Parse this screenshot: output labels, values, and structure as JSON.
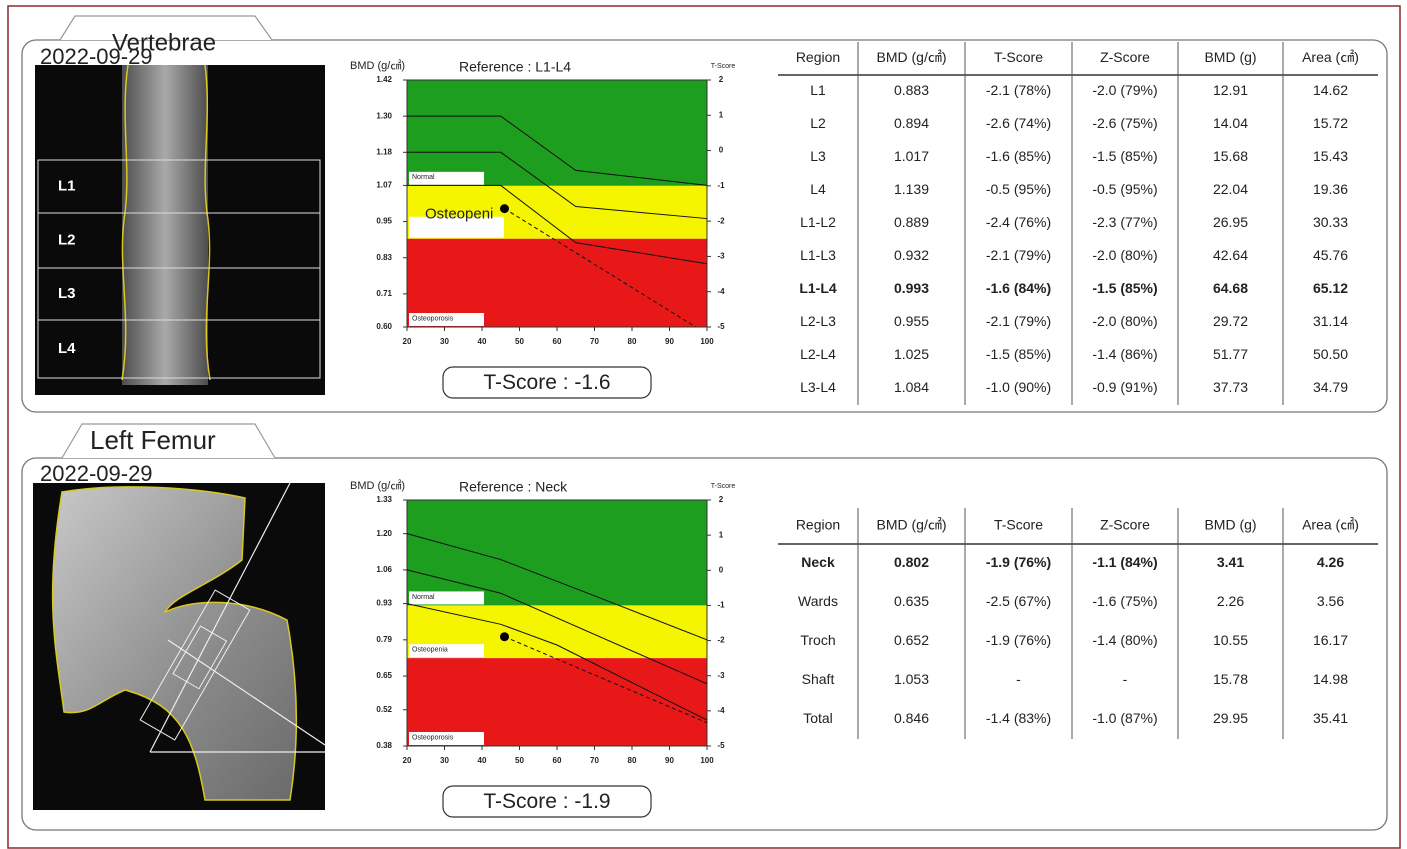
{
  "panels": [
    {
      "title": "Vertebrae",
      "date": "2022-09-29",
      "image_labels": [
        "L1",
        "L2",
        "L3",
        "L4"
      ],
      "chart": {
        "type": "line",
        "y_label": "BMD (g/㎠)",
        "reference": "Reference : L1-L4",
        "y2_label": "T-Score",
        "xlim": [
          20,
          100
        ],
        "xticks": [
          20,
          30,
          40,
          50,
          60,
          70,
          80,
          90,
          100
        ],
        "ylim": [
          0.6,
          1.42
        ],
        "yticks": [
          1.42,
          {
            "value": 1.3,
            "label": "1.30"
          },
          1.18,
          1.07,
          0.95,
          0.83,
          0.71,
          {
            "value": 0.6,
            "label": "0.60"
          }
        ],
        "y2lim": [
          -5,
          2
        ],
        "y2ticks": [
          2,
          1,
          0,
          -1,
          -2,
          -3,
          -4,
          -5
        ],
        "zones": [
          {
            "label": "Normal",
            "from": -1,
            "to": 2,
            "color": "#1e9e1e"
          },
          {
            "label": "Osteopeni",
            "from": -2.5,
            "to": -1,
            "color": "#f5f500"
          },
          {
            "label": "Osteoporosis",
            "from": -5,
            "to": -2.5,
            "color": "#e81818"
          }
        ],
        "series": [
          {
            "style": "solid",
            "x": [
              20,
              45,
              65,
              100
            ],
            "values": [
              1.3,
              1.3,
              1.12,
              1.07
            ]
          },
          {
            "style": "solid",
            "x": [
              20,
              45,
              65,
              100
            ],
            "values": [
              1.18,
              1.18,
              1.0,
              0.96
            ]
          },
          {
            "style": "solid",
            "x": [
              20,
              45,
              65,
              100
            ],
            "values": [
              1.07,
              1.07,
              0.88,
              0.81
            ]
          },
          {
            "style": "dashed",
            "x": [
              46,
              97
            ],
            "values": [
              0.993,
              0.6
            ]
          }
        ],
        "point": {
          "x": 46,
          "value": 0.993
        }
      },
      "tscore": "T-Score : -1.6",
      "table": {
        "header": [
          "Region",
          "BMD (g/㎠)",
          "T-Score",
          "Z-Score",
          "BMD (g)",
          "Area (㎠)"
        ],
        "bold_row": 6,
        "rows": [
          [
            "L1",
            "0.883",
            "-2.1 (78%)",
            "-2.0 (79%)",
            "12.91",
            "14.62"
          ],
          [
            "L2",
            "0.894",
            "-2.6 (74%)",
            "-2.6 (75%)",
            "14.04",
            "15.72"
          ],
          [
            "L3",
            "1.017",
            "-1.6 (85%)",
            "-1.5 (85%)",
            "15.68",
            "15.43"
          ],
          [
            "L4",
            "1.139",
            "-0.5 (95%)",
            "-0.5 (95%)",
            "22.04",
            "19.36"
          ],
          [
            "L1-L2",
            "0.889",
            "-2.4 (76%)",
            "-2.3 (77%)",
            "26.95",
            "30.33"
          ],
          [
            "L1-L3",
            "0.932",
            "-2.1 (79%)",
            "-2.0 (80%)",
            "42.64",
            "45.76"
          ],
          [
            "L1-L4",
            "0.993",
            "-1.6 (84%)",
            "-1.5 (85%)",
            "64.68",
            "65.12"
          ],
          [
            "L2-L3",
            "0.955",
            "-2.1 (79%)",
            "-2.0 (80%)",
            "29.72",
            "31.14"
          ],
          [
            "L2-L4",
            "1.025",
            "-1.5 (85%)",
            "-1.4 (86%)",
            "51.77",
            "50.50"
          ],
          [
            "L3-L4",
            "1.084",
            "-1.0 (90%)",
            "-0.9 (91%)",
            "37.73",
            "34.79"
          ]
        ]
      }
    },
    {
      "title": "Left Femur",
      "date": "2022-09-29",
      "image_labels": [],
      "chart": {
        "type": "line",
        "y_label": "BMD (g/㎠)",
        "reference": "Reference : Neck",
        "y2_label": "T-Score",
        "xlim": [
          20,
          100
        ],
        "xticks": [
          20,
          30,
          40,
          50,
          60,
          70,
          80,
          90,
          100
        ],
        "ylim": [
          0.38,
          1.33
        ],
        "yticks": [
          1.33,
          {
            "value": 1.2,
            "label": "1.20"
          },
          1.06,
          0.93,
          0.79,
          0.65,
          0.52,
          0.38
        ],
        "y2lim": [
          -5,
          2
        ],
        "y2ticks": [
          2,
          1,
          0,
          -1,
          -2,
          -3,
          -4,
          -5
        ],
        "zones": [
          {
            "label": "Normal",
            "from": -1,
            "to": 2,
            "color": "#1e9e1e"
          },
          {
            "label": "Osteopenia",
            "from": -2.5,
            "to": -1,
            "color": "#f5f500"
          },
          {
            "label": "Osteoporosis",
            "from": -5,
            "to": -2.5,
            "color": "#e81818"
          }
        ],
        "series": [
          {
            "style": "solid",
            "x": [
              20,
              45,
              70,
              100
            ],
            "values": [
              1.2,
              1.1,
              0.96,
              0.79
            ]
          },
          {
            "style": "solid",
            "x": [
              20,
              45,
              100
            ],
            "values": [
              1.06,
              0.97,
              0.62
            ]
          },
          {
            "style": "solid",
            "x": [
              20,
              45,
              60,
              100
            ],
            "values": [
              0.93,
              0.85,
              0.77,
              0.48
            ]
          },
          {
            "style": "dashed",
            "x": [
              46,
              100
            ],
            "values": [
              0.802,
              0.47
            ]
          }
        ],
        "point": {
          "x": 46,
          "value": 0.802
        }
      },
      "tscore": "T-Score : -1.9",
      "table": {
        "header": [
          "Region",
          "BMD (g/㎠)",
          "T-Score",
          "Z-Score",
          "BMD (g)",
          "Area (㎠)"
        ],
        "bold_row": 0,
        "rows": [
          [
            "Neck",
            "0.802",
            "-1.9 (76%)",
            "-1.1 (84%)",
            "3.41",
            "4.26"
          ],
          [
            "Wards",
            "0.635",
            "-2.5 (67%)",
            "-1.6 (75%)",
            "2.26",
            "3.56"
          ],
          [
            "Troch",
            "0.652",
            "-1.9 (76%)",
            "-1.4 (80%)",
            "10.55",
            "16.17"
          ],
          [
            "Shaft",
            "1.053",
            "-",
            "-",
            "15.78",
            "14.98"
          ],
          [
            "Total",
            "0.846",
            "-1.4 (83%)",
            "-1.0 (87%)",
            "29.95",
            "35.41"
          ]
        ]
      }
    }
  ]
}
